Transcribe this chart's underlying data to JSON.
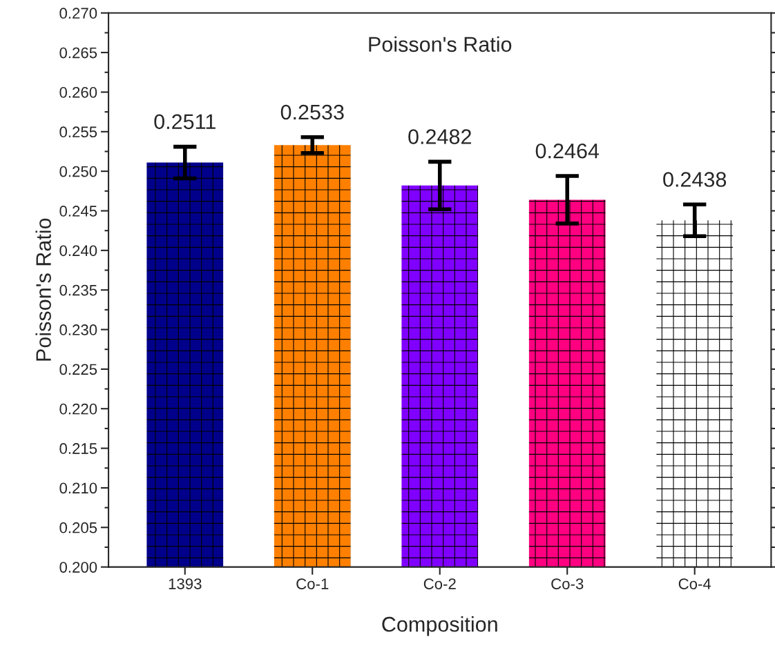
{
  "chart_data": {
    "type": "bar",
    "title": "Poisson's Ratio",
    "xlabel": "Composition",
    "ylabel": "Poisson's Ratio",
    "categories": [
      "1393",
      "Co-1",
      "Co-2",
      "Co-3",
      "Co-4"
    ],
    "values": [
      0.2511,
      0.2533,
      0.2482,
      0.2464,
      0.2438
    ],
    "errors": [
      0.002,
      0.001,
      0.003,
      0.003,
      0.002
    ],
    "colors": [
      "#00008b",
      "#ff8000",
      "#8000ff",
      "#ff0080",
      "#ffffff"
    ],
    "data_labels": true,
    "grid": false,
    "ylim": [
      0.2,
      0.27
    ],
    "yticks": [
      {
        "value": 0.2,
        "label": "0.200"
      },
      {
        "value": 0.205,
        "label": "0.205"
      },
      {
        "value": 0.21,
        "label": "0.210"
      },
      {
        "value": 0.215,
        "label": "0.215"
      },
      {
        "value": 0.22,
        "label": "0.220"
      },
      {
        "value": 0.225,
        "label": "0.225"
      },
      {
        "value": 0.23,
        "label": "0.230"
      },
      {
        "value": 0.235,
        "label": "0.235"
      },
      {
        "value": 0.24,
        "label": "0.240"
      },
      {
        "value": 0.245,
        "label": "0.245"
      },
      {
        "value": 0.25,
        "label": "0.250"
      },
      {
        "value": 0.255,
        "label": "0.255"
      },
      {
        "value": 0.26,
        "label": "0.260"
      },
      {
        "value": 0.265,
        "label": "0.265"
      },
      {
        "value": 0.27,
        "label": "0.270"
      }
    ]
  }
}
